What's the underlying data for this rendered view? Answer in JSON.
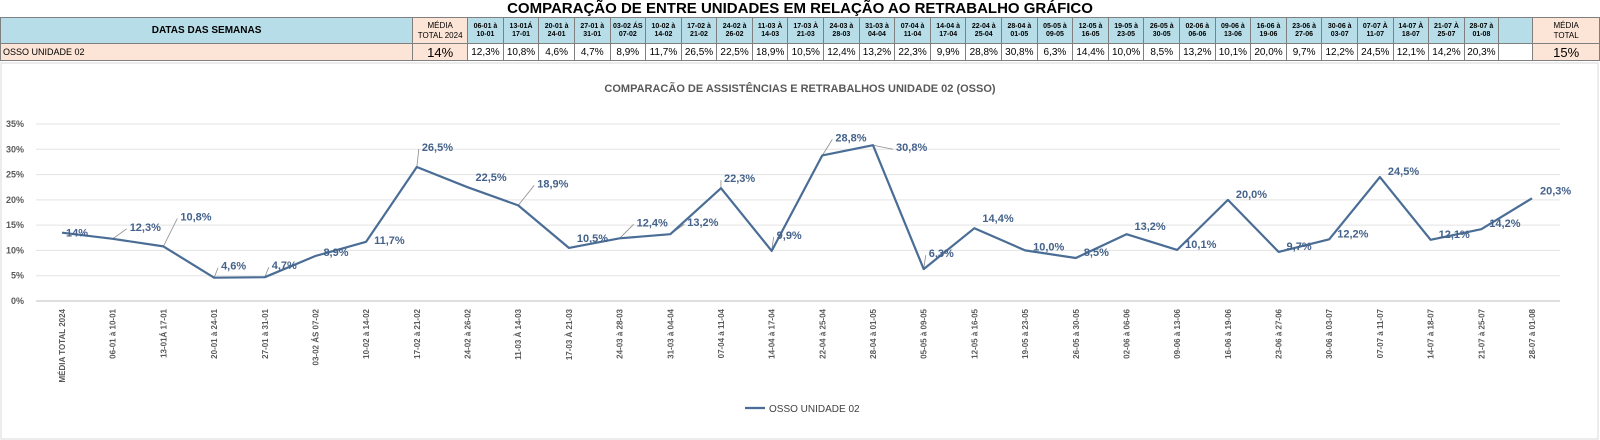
{
  "sheet": {
    "title": "COMPARAÇÃO DE ENTRE UNIDADES EM RELAÇÃO AO RETRABALHO GRÁFICO",
    "row_header": "DATAS DAS SEMANAS",
    "row_label": "OSSO UNIDADE 02",
    "media_label_1": "MÉDIA\nTOTAL 2024",
    "media_value_1": "14%",
    "media_label_2": "MÉDIA\nTOTAL",
    "media_value_2": "15%",
    "weeks": [
      {
        "head": "06-01 à\n10-01",
        "value": "12,3%"
      },
      {
        "head": "13-01Á\n17-01",
        "value": "10,8%"
      },
      {
        "head": "20-01 à\n24-01",
        "value": "4,6%"
      },
      {
        "head": "27-01 à\n31-01",
        "value": "4,7%"
      },
      {
        "head": "03-02 ÁS\n07-02",
        "value": "8,9%"
      },
      {
        "head": "10-02 à\n14-02",
        "value": "11,7%"
      },
      {
        "head": "17-02 à\n21-02",
        "value": "26,5%"
      },
      {
        "head": "24-02 à\n26-02",
        "value": "22,5%"
      },
      {
        "head": "11-03 À\n14-03",
        "value": "18,9%"
      },
      {
        "head": "17-03 À\n21-03",
        "value": "10,5%"
      },
      {
        "head": "24-03 à\n28-03",
        "value": "12,4%"
      },
      {
        "head": "31-03 à\n04-04",
        "value": "13,2%"
      },
      {
        "head": "07-04 à\n11-04",
        "value": "22,3%"
      },
      {
        "head": "14-04 à\n17-04",
        "value": "9,9%"
      },
      {
        "head": "22-04 à\n25-04",
        "value": "28,8%"
      },
      {
        "head": "28-04 à\n01-05",
        "value": "30,8%"
      },
      {
        "head": "05-05 à\n09-05",
        "value": "6,3%"
      },
      {
        "head": "12-05 à\n16-05",
        "value": "14,4%"
      },
      {
        "head": "19-05 à\n23-05",
        "value": "10,0%"
      },
      {
        "head": "26-05 à\n30-05",
        "value": "8,5%"
      },
      {
        "head": "02-06 à\n06-06",
        "value": "13,2%"
      },
      {
        "head": "09-06 à\n13-06",
        "value": "10,1%"
      },
      {
        "head": "16-06 à\n19-06",
        "value": "20,0%"
      },
      {
        "head": "23-06 à\n27-06",
        "value": "9,7%"
      },
      {
        "head": "30-06 à\n03-07",
        "value": "12,2%"
      },
      {
        "head": "07-07 À\n11-07",
        "value": "24,5%"
      },
      {
        "head": "14-07 À\n18-07",
        "value": "12,1%"
      },
      {
        "head": "21-07 À\n25-07",
        "value": "14,2%"
      },
      {
        "head": "28-07 à\n01-08",
        "value": "20,3%"
      }
    ]
  },
  "chart_data": {
    "type": "line",
    "title": "COMPARACÃO DE ASSISTÊNCIAS E RETRABALHOS UNIDADE 02  (OSSO)",
    "xlabel": "",
    "ylabel": "",
    "ylim": [
      0,
      35
    ],
    "yticks": [
      "0%",
      "5%",
      "10%",
      "15%",
      "20%",
      "25%",
      "30%",
      "35%"
    ],
    "grid": true,
    "legend_position": "bottom",
    "color": "#4a6d96",
    "categories": [
      "MÉDIA TOTAL 2024",
      "06-01 à 10-01",
      "13-01Á 17-01",
      "20-01 à 24-01",
      "27-01 à 31-01",
      "03-02 ÁS 07-02",
      "10-02 à 14-02",
      "17-02 à 21-02",
      "24-02 à 26-02",
      "11-03 À 14-03",
      "17-03 À 21-03",
      "24-03 à 28-03",
      "31-03 à 04-04",
      "07-04 à 11-04",
      "14-04 à 17-04",
      "22-04 à 25-04",
      "28-04 à 01-05",
      "05-05 à 09-05",
      "12-05 à 16-05",
      "19-05 à 23-05",
      "26-05 à 30-05",
      "02-06 à 06-06",
      "09-06 à 13-06",
      "16-06 à 19-06",
      "23-06 à 27-06",
      "30-06 à 03-07",
      "07-07 à 11-07",
      "14-07 à 18-07",
      "21-07 à 25-07",
      "28-07 à 01-08"
    ],
    "series": [
      {
        "name": "OSSO UNIDADE 02",
        "values": [
          13.5,
          12.3,
          10.8,
          4.6,
          4.7,
          8.9,
          11.7,
          26.5,
          22.5,
          18.9,
          10.5,
          12.4,
          13.2,
          22.3,
          9.9,
          28.8,
          30.8,
          6.3,
          14.4,
          10.0,
          8.5,
          13.2,
          10.1,
          20.0,
          9.7,
          12.2,
          24.5,
          12.1,
          14.2,
          20.3
        ],
        "labels": [
          "14%",
          "12,3%",
          "10,8%",
          "4,6%",
          "4,7%",
          "8,9%",
          "11,7%",
          "26,5%",
          "22,5%",
          "18,9%",
          "10,5%",
          "12,4%",
          "13,2%",
          "22,3%",
          "9,9%",
          "28,8%",
          "30,8%",
          "6,3%",
          "14,4%",
          "10,0%",
          "8,5%",
          "13,2%",
          "10,1%",
          "20,0%",
          "9,7%",
          "12,2%",
          "24,5%",
          "12,1%",
          "14,2%",
          "20,3%"
        ]
      }
    ]
  }
}
